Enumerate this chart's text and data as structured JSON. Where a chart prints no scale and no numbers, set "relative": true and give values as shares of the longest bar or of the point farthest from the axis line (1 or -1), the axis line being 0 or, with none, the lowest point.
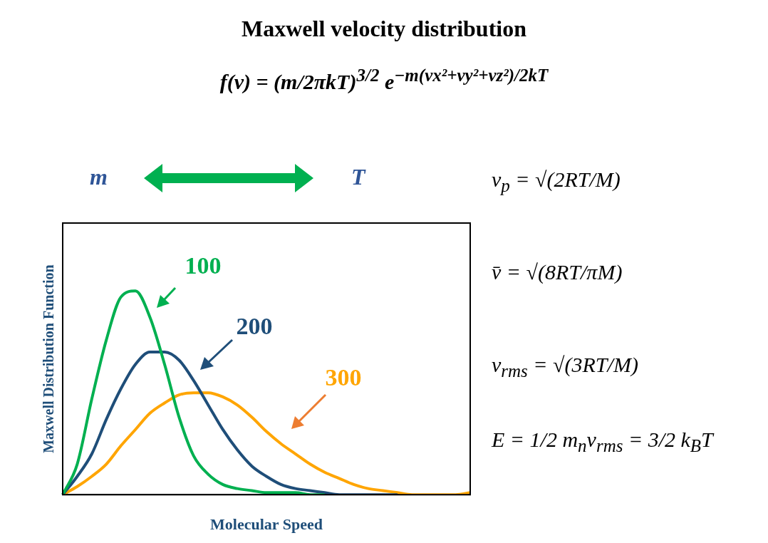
{
  "chart_data": {
    "type": "line",
    "title": "Maxwell velocity distribution",
    "subtitle": "f(v) = (m/2πkT)$^{3/2}$ e$^{−m(vx²+vy²+vz²)/2kT}$",
    "xlabel": "Molecular Speed",
    "ylabel": "Maxwell Distribution Function",
    "relative": true,
    "legend": false,
    "grid": false,
    "marker": "none",
    "line_style": "solid",
    "categories": [
      null,
      null,
      null,
      null,
      null,
      null,
      null,
      null,
      null,
      null,
      null,
      null,
      null,
      null,
      null,
      null,
      null,
      null,
      null,
      null,
      null,
      null,
      null,
      null,
      null,
      null,
      null,
      null,
      null
    ],
    "series": [
      {
        "name": "100",
        "color": "#00b050",
        "values": [
          0,
          0.15,
          0.47,
          0.76,
          0.97,
          1,
          0.87,
          0.64,
          0.38,
          0.19,
          0.1,
          0.05,
          0.03,
          0.02,
          0.01,
          0.01,
          0.01,
          0,
          0,
          null,
          null,
          null,
          null,
          null,
          null,
          null,
          null,
          null,
          null
        ]
      },
      {
        "name": "200",
        "color": "#1f4e79",
        "values": [
          0,
          0.09,
          0.2,
          0.37,
          0.52,
          0.64,
          0.7,
          0.7,
          0.66,
          0.56,
          0.44,
          0.32,
          0.22,
          0.14,
          0.09,
          0.05,
          0.03,
          0.02,
          0.01,
          0,
          0,
          0,
          0,
          0,
          null,
          null,
          null,
          null,
          null
        ]
      },
      {
        "name": "300",
        "color": "#ffa500",
        "values": [
          0,
          0.04,
          0.09,
          0.15,
          0.24,
          0.32,
          0.4,
          0.45,
          0.49,
          0.5,
          0.5,
          0.48,
          0.44,
          0.38,
          0.31,
          0.25,
          0.2,
          0.15,
          0.11,
          0.08,
          0.05,
          0.03,
          0.02,
          0.01,
          0,
          0,
          0,
          0,
          0.01
        ]
      }
    ],
    "annotations": [
      "m",
      "T",
      "v$_{p}$ = √(2RT/M)",
      "v̄ = √(8RT/πM)",
      "v$_{rms}$ = √(3RT/M)",
      "E = 1/2 m$_{n}$v$_{rms}$ = 3/2 k$_{B}$T"
    ]
  }
}
